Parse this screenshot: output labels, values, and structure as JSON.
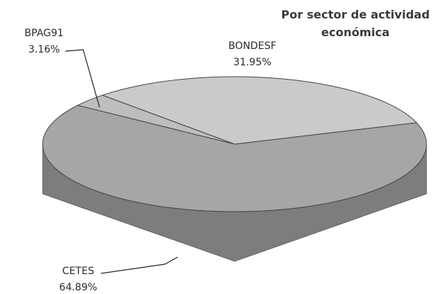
{
  "chart_data": {
    "type": "pie",
    "title": "Por sector de actividad económica",
    "categories": [
      "BONDESF",
      "BPAG91",
      "CETES"
    ],
    "values": [
      31.95,
      3.16,
      64.89
    ],
    "value_labels": [
      "31.95%",
      "3.16%",
      "64.89%"
    ],
    "colors": [
      "#cacaca",
      "#bebebe",
      "#a6a6a6"
    ]
  }
}
